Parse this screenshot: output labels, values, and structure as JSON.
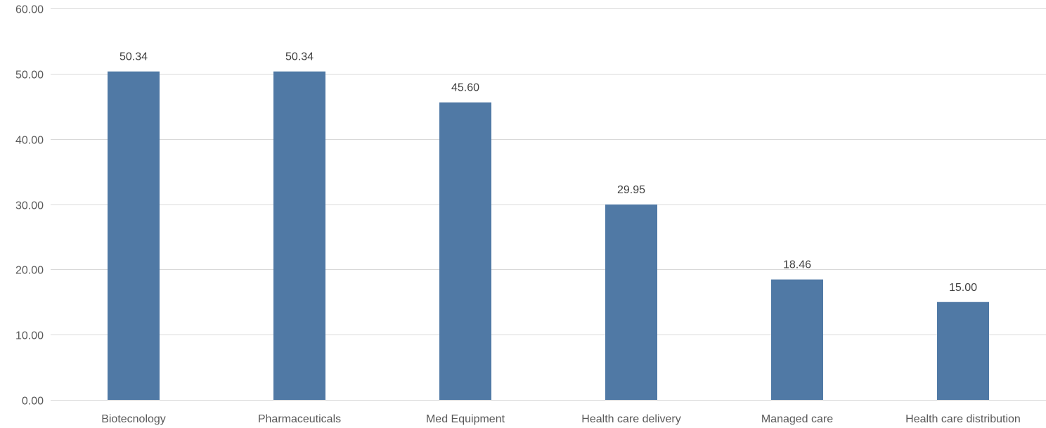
{
  "chart_data": {
    "type": "bar",
    "title": "",
    "xlabel": "",
    "ylabel": "",
    "categories": [
      "Biotecnology",
      "Pharmaceuticals",
      "Med Equipment",
      "Health care delivery",
      "Managed care",
      "Health care distribution"
    ],
    "series": [
      {
        "values": [
          50.34,
          50.34,
          45.6,
          29.95,
          18.46,
          15.0
        ],
        "color": "#5079a5"
      }
    ],
    "data_labels": [
      "50.34",
      "50.34",
      "45.60",
      "29.95",
      "18.46",
      "15.00"
    ],
    "ylim": [
      0,
      60
    ],
    "y_ticks": [
      0,
      10,
      20,
      30,
      40,
      50,
      60
    ],
    "y_tick_labels": [
      "0.00",
      "10.00",
      "20.00",
      "30.00",
      "40.00",
      "50.00",
      "60.00"
    ],
    "grid": true,
    "legend": "none"
  }
}
